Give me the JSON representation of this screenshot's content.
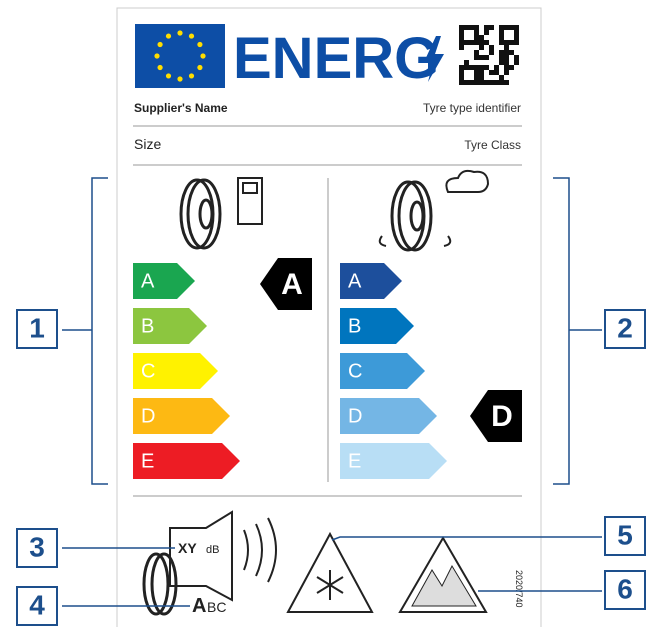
{
  "header": {
    "title": "ENERG"
  },
  "supplier": {
    "name": "Supplier's Name",
    "identifier": "Tyre type identifier"
  },
  "size": {
    "label": "Size",
    "class": "Tyre Class"
  },
  "fuel": {
    "grades": [
      "A",
      "B",
      "C",
      "D",
      "E"
    ],
    "rating": "A"
  },
  "wet": {
    "grades": [
      "A",
      "B",
      "C",
      "D",
      "E"
    ],
    "rating": "D"
  },
  "noise": {
    "value": "XY",
    "unit": "dB",
    "class_main": "A",
    "class_rest": "BC"
  },
  "regulation": "2020/740",
  "callouts": [
    "1",
    "2",
    "3",
    "4",
    "5",
    "6"
  ]
}
